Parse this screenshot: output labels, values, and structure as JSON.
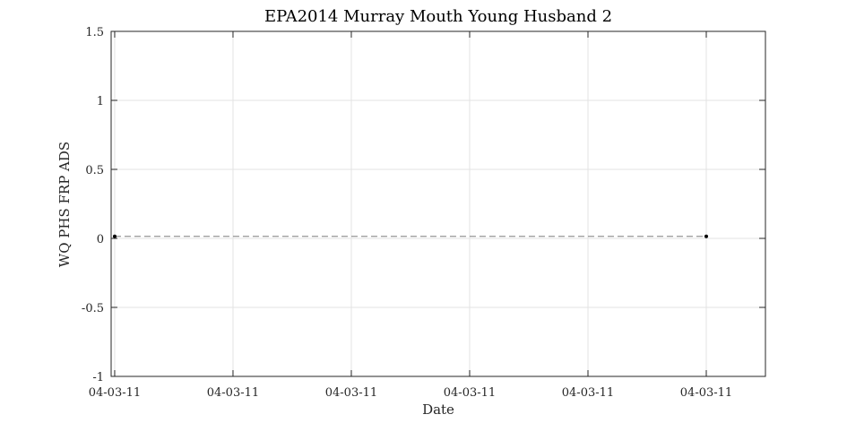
{
  "chart_data": {
    "type": "line",
    "title": "EPA2014 Murray Mouth Young Husband 2",
    "xlabel": "Date",
    "ylabel": "WQ PHS FRP ADS",
    "x_tick_labels": [
      "04-03-11",
      "04-03-11",
      "04-03-11",
      "04-03-11",
      "04-03-11",
      "04-03-11"
    ],
    "y_tick_labels": [
      "-1",
      "-0.5",
      "0",
      "0.5",
      "1",
      "1.5"
    ],
    "ylim": [
      -1,
      1.5
    ],
    "y_ticks": [
      -1,
      -0.5,
      0,
      0.5,
      1,
      1.5
    ],
    "xlim": [
      -0.03,
      5.5
    ],
    "x_ticks": [
      0,
      1,
      2,
      3,
      4,
      5
    ],
    "grid": true,
    "series": [
      {
        "x": [
          0,
          5
        ],
        "y": [
          0.015,
          0.015
        ],
        "line_style": "dashed",
        "marker": "dot",
        "color": "#7f7f7f",
        "marker_color": "#000000"
      }
    ]
  }
}
